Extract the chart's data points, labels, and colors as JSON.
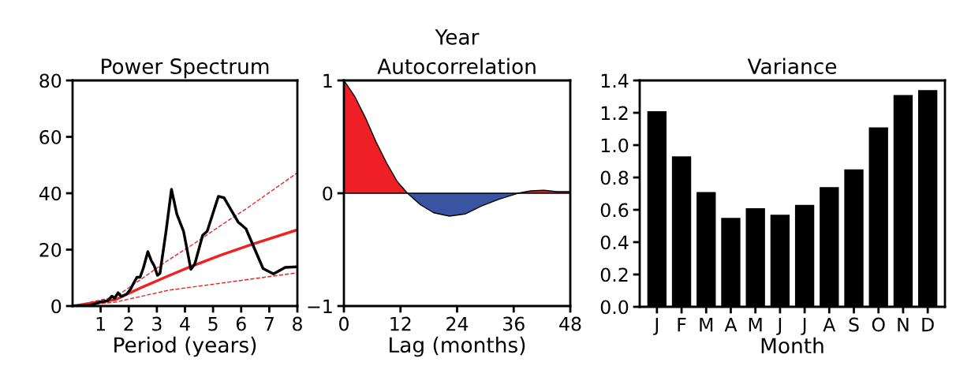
{
  "chart_data": [
    {
      "type": "line",
      "title": "Power Spectrum",
      "xlabel": "Period (years)",
      "xlim": [
        0,
        8
      ],
      "xticks": [
        1,
        2,
        3,
        4,
        5,
        6,
        7,
        8
      ],
      "ylim": [
        0,
        80
      ],
      "yticks": [
        0,
        20,
        40,
        60,
        80
      ],
      "series": [
        {
          "color": "#000000",
          "line_style": "solid",
          "x": [
            0,
            0.61,
            0.98,
            1.26,
            1.4,
            1.5,
            1.62,
            1.73,
            1.92,
            2.06,
            2.15,
            2.29,
            2.4,
            2.52,
            2.68,
            2.8,
            2.9,
            3.02,
            3.11,
            3.32,
            3.52,
            3.71,
            3.95,
            4.21,
            4.35,
            4.63,
            4.79,
            5.19,
            5.39,
            5.89,
            6.17,
            6.78,
            7.15,
            7.57,
            7.99
          ],
          "values": [
            0,
            0.2,
            1.4,
            1.9,
            3.5,
            2.8,
            4.7,
            3.4,
            4.2,
            5.9,
            7.7,
            10.2,
            10.2,
            13.5,
            19.3,
            16.1,
            14.4,
            10.9,
            11.6,
            26.0,
            41.4,
            32.6,
            26.5,
            13.0,
            14.9,
            25.1,
            26.5,
            38.9,
            38.4,
            29.8,
            27.4,
            13.3,
            11.4,
            13.7,
            13.9
          ]
        },
        {
          "color": "#ee2222",
          "line_style": "solid",
          "x": [
            0,
            1.54,
            2.48,
            3.41,
            4.21,
            5.28,
            6.4,
            7.99
          ],
          "values": [
            0,
            2.3,
            6.7,
            10.7,
            14.0,
            18.1,
            21.9,
            27.0
          ]
        },
        {
          "color": "#ee2222",
          "line_style": "dashed",
          "x": [
            0,
            1.54,
            2.48,
            3.41,
            4.35,
            5.28,
            6.21,
            7.99
          ],
          "values": [
            0,
            3.3,
            9.8,
            16.3,
            22.3,
            28.6,
            34.7,
            47.2
          ]
        },
        {
          "color": "#ee2222",
          "line_style": "dashed",
          "x": [
            0,
            1.54,
            3.41,
            5.28,
            7.99
          ],
          "values": [
            0,
            1.4,
            5.6,
            8.1,
            11.8
          ]
        }
      ]
    },
    {
      "type": "area",
      "title": "Autocorrelation",
      "annotations": [
        "Year"
      ],
      "xlabel": "Lag (months)",
      "xlim": [
        0,
        48
      ],
      "xticks": [
        0,
        12,
        24,
        36,
        48
      ],
      "ylim": [
        -1,
        1
      ],
      "yticks": [
        {
          "value": -1,
          "label": "−1"
        },
        0,
        1
      ],
      "x": [
        0,
        2.34,
        4.57,
        6.79,
        9.02,
        11.25,
        13.47,
        16.26,
        19.04,
        22.38,
        25.7,
        29.1,
        33.0,
        36.9,
        39.6,
        42.4,
        45.2,
        48
      ],
      "series": [
        {
          "color": "#ee2026",
          "values": [
            1,
            0.855,
            0.669,
            0.457,
            0.271,
            0.107,
            0,
            null,
            null,
            null,
            null,
            null,
            null,
            0,
            0.021,
            0.026,
            0.014,
            0.014
          ]
        },
        {
          "color": "#3a54a4",
          "values": [
            null,
            null,
            null,
            null,
            null,
            null,
            0,
            -0.103,
            -0.173,
            -0.203,
            -0.184,
            -0.114,
            -0.051,
            0,
            null,
            null,
            null,
            null
          ]
        }
      ]
    },
    {
      "type": "bar",
      "title": "Variance",
      "xlabel": "Month",
      "categories": [
        "J",
        "F",
        "M",
        "A",
        "M",
        "J",
        "J",
        "A",
        "S",
        "O",
        "N",
        "D"
      ],
      "values": [
        1.21,
        0.93,
        0.71,
        0.55,
        0.61,
        0.57,
        0.63,
        0.74,
        0.85,
        1.11,
        1.31,
        1.34
      ],
      "color": "#000000",
      "ylim": [
        0,
        1.4
      ],
      "yticks": [
        {
          "value": 0,
          "label": "0.0"
        },
        {
          "value": 0.2,
          "label": "0.2"
        },
        {
          "value": 0.4,
          "label": "0.4"
        },
        {
          "value": 0.6,
          "label": "0.6"
        },
        {
          "value": 0.8,
          "label": "0.8"
        },
        {
          "value": 1.0,
          "label": "1.0"
        },
        {
          "value": 1.2,
          "label": "1.2"
        },
        {
          "value": 1.4,
          "label": "1.4"
        }
      ]
    }
  ]
}
